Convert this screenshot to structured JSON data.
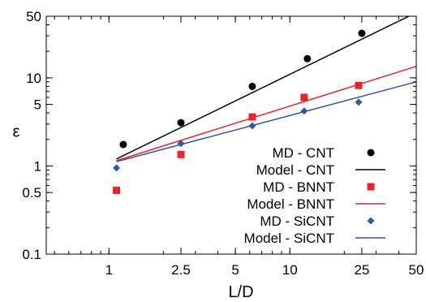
{
  "chart_data": {
    "type": "scatter",
    "title": "",
    "xlabel": "L/D",
    "ylabel": "ε",
    "xscale": "log",
    "yscale": "log",
    "xlim": [
      0.45,
      50
    ],
    "ylim": [
      0.1,
      50
    ],
    "grid": false,
    "legend_position": "lower-right",
    "x_ticks": [
      {
        "value": 1,
        "label": "1"
      },
      {
        "value": 2.5,
        "label": "2.5"
      },
      {
        "value": 5,
        "label": "5"
      },
      {
        "value": 10,
        "label": "10"
      },
      {
        "value": 25,
        "label": "25"
      },
      {
        "value": 50,
        "label": "50"
      }
    ],
    "y_ticks": [
      {
        "value": 0.1,
        "label": "0.1"
      },
      {
        "value": 0.5,
        "label": "0.5"
      },
      {
        "value": 1,
        "label": "1"
      },
      {
        "value": 5,
        "label": "5"
      },
      {
        "value": 10,
        "label": "10"
      },
      {
        "value": 50,
        "label": "50"
      }
    ],
    "series": [
      {
        "name": "MD - CNT",
        "kind": "points",
        "marker": "circle",
        "color": "#000000",
        "x": [
          1.2,
          2.5,
          6.2,
          12.5,
          25
        ],
        "y": [
          1.75,
          3.1,
          8.0,
          16.5,
          32.0
        ]
      },
      {
        "name": "Model - CNT",
        "kind": "line",
        "color": "#000000",
        "x": [
          1.1,
          50
        ],
        "y": [
          1.2,
          55
        ]
      },
      {
        "name": "MD - BNNT",
        "kind": "points",
        "marker": "square",
        "color": "#e8232a",
        "x": [
          1.1,
          2.5,
          6.2,
          12.0,
          24.0
        ],
        "y": [
          0.53,
          1.35,
          3.6,
          6.0,
          8.2
        ]
      },
      {
        "name": "Model - BNNT",
        "kind": "line",
        "color": "#e8232a",
        "x": [
          1.1,
          50
        ],
        "y": [
          1.15,
          13.5
        ]
      },
      {
        "name": "MD - SiCNT",
        "kind": "points",
        "marker": "diamond",
        "color": "#2f58a8",
        "x": [
          1.1,
          2.5,
          6.2,
          12.0,
          24.0
        ],
        "y": [
          0.95,
          1.8,
          2.85,
          4.2,
          5.3
        ]
      },
      {
        "name": "Model - SiCNT",
        "kind": "line",
        "color": "#2f58a8",
        "x": [
          1.1,
          50
        ],
        "y": [
          1.12,
          9.0
        ]
      }
    ]
  }
}
